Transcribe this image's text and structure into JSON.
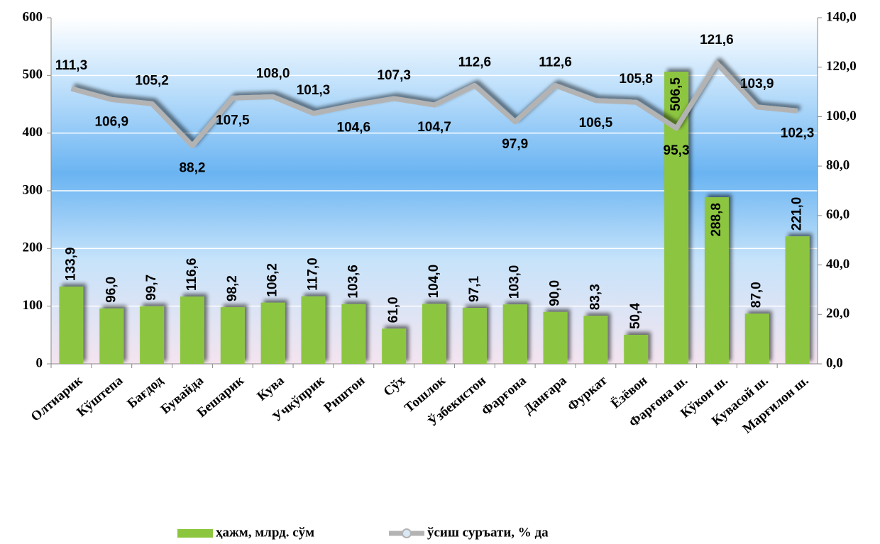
{
  "chart_data": {
    "type": "bar+line",
    "categories": [
      "Олтиарик",
      "Кўштепа",
      "Бағдод",
      "Бувайда",
      "Бешарик",
      "Кува",
      "Учкўприк",
      "Риштон",
      "Сўх",
      "Тошлок",
      "Ўзбекистон",
      "Фарғона",
      "Данғара",
      "Фуркат",
      "Ёзёвон",
      "Фарғона ш.",
      "Кўкон ш.",
      "Кувасой ш.",
      "Марғилон ш."
    ],
    "series": [
      {
        "name": "ҳажм, млрд. сўм",
        "color": "#8cc63f",
        "type": "bar",
        "values": [
          133.9,
          96.0,
          99.7,
          116.6,
          98.2,
          106.2,
          117.0,
          103.6,
          61.0,
          104.0,
          97.1,
          103.0,
          90.0,
          83.3,
          50.4,
          506.5,
          288.8,
          87.0,
          221.0
        ],
        "value_labels": [
          "133,9",
          "96,0",
          "99,7",
          "116,6",
          "98,2",
          "106,2",
          "117,0",
          "103,6",
          "61,0",
          "104,0",
          "97,1",
          "103,0",
          "90,0",
          "83,3",
          "50,4",
          "506,5",
          "288,8",
          "87,0",
          "221,0"
        ]
      },
      {
        "name": "ўсиш суръати, % да",
        "color": "#b3b3b3",
        "type": "line",
        "axis": "y2",
        "values": [
          111.3,
          106.9,
          105.2,
          88.2,
          107.5,
          108.0,
          101.3,
          104.6,
          107.3,
          104.7,
          112.6,
          97.9,
          112.6,
          106.5,
          105.8,
          95.3,
          121.6,
          103.9,
          102.3
        ],
        "value_labels": [
          "111,3",
          "106,9",
          "105,2",
          "88,2",
          "107,5",
          "108,0",
          "101,3",
          "104,6",
          "107,3",
          "104,7",
          "112,6",
          "97,9",
          "112,6",
          "106,5",
          "105,8",
          "95,3",
          "121,6",
          "103,9",
          "102,3"
        ]
      }
    ],
    "ylim": [
      0,
      600
    ],
    "yticks": [
      0,
      100,
      200,
      300,
      400,
      500,
      600
    ],
    "y2lim": [
      0,
      140
    ],
    "y2ticks": [
      {
        "value": 0,
        "label": "0,0"
      },
      {
        "value": 20,
        "label": "20,0"
      },
      {
        "value": 40,
        "label": "40,0"
      },
      {
        "value": 60,
        "label": "60,0"
      },
      {
        "value": 80,
        "label": "80,0"
      },
      {
        "value": 100,
        "label": "100,0"
      },
      {
        "value": 120,
        "label": "120,0"
      },
      {
        "value": 140,
        "label": "140,0"
      }
    ],
    "grid": true,
    "legend": "bottom"
  }
}
